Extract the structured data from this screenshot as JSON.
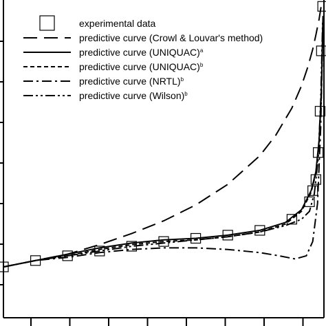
{
  "chart_data": {
    "type": "line",
    "title": "",
    "xlabel": "",
    "ylabel": "",
    "xlim": [
      0,
      1
    ],
    "ylim": [
      0,
      1
    ],
    "legend_position": "top-left",
    "grid": false,
    "series": [
      {
        "name": "experimental data",
        "marker": "open-square",
        "x": [
          0.0,
          0.1,
          0.2,
          0.3,
          0.4,
          0.5,
          0.6,
          0.7,
          0.8,
          0.9,
          0.955,
          0.965,
          0.975,
          0.982,
          0.988,
          0.992,
          0.996
        ],
        "y": [
          0.16,
          0.18,
          0.195,
          0.21,
          0.225,
          0.24,
          0.25,
          0.26,
          0.275,
          0.31,
          0.365,
          0.4,
          0.435,
          0.52,
          0.65,
          0.84,
          0.98
        ]
      },
      {
        "name": "predictive curve (Crowl & Louvar's method)",
        "dash": "long",
        "x": [
          0.0,
          0.1,
          0.2,
          0.3,
          0.4,
          0.5,
          0.6,
          0.7,
          0.8,
          0.85,
          0.9,
          0.93,
          0.95,
          0.965,
          0.975,
          0.985,
          0.992
        ],
        "y": [
          0.16,
          0.18,
          0.2,
          0.23,
          0.265,
          0.305,
          0.355,
          0.42,
          0.51,
          0.575,
          0.66,
          0.73,
          0.79,
          0.845,
          0.89,
          0.94,
          0.985
        ]
      },
      {
        "name": "predictive curve (UNIQUAC)",
        "sup": "a",
        "dash": "solid",
        "x": [
          0.0,
          0.1,
          0.2,
          0.3,
          0.4,
          0.5,
          0.6,
          0.7,
          0.8,
          0.88,
          0.93,
          0.96,
          0.975,
          0.985,
          0.992,
          0.997
        ],
        "y": [
          0.16,
          0.18,
          0.2,
          0.22,
          0.235,
          0.245,
          0.25,
          0.26,
          0.275,
          0.3,
          0.34,
          0.4,
          0.46,
          0.56,
          0.72,
          0.95
        ]
      },
      {
        "name": "predictive curve (UNIQUAC)",
        "sup": "b",
        "dash": "short",
        "x": [
          0.0,
          0.1,
          0.2,
          0.3,
          0.4,
          0.5,
          0.6,
          0.7,
          0.8,
          0.88,
          0.93,
          0.96,
          0.975,
          0.985,
          0.992,
          0.997
        ],
        "y": [
          0.16,
          0.18,
          0.195,
          0.215,
          0.23,
          0.24,
          0.245,
          0.255,
          0.27,
          0.295,
          0.335,
          0.395,
          0.455,
          0.55,
          0.7,
          0.93
        ]
      },
      {
        "name": "predictive curve (NRTL)",
        "sup": "b",
        "dash": "dash-dot",
        "x": [
          0.0,
          0.1,
          0.2,
          0.3,
          0.4,
          0.5,
          0.6,
          0.7,
          0.8,
          0.86,
          0.91,
          0.945,
          0.965,
          0.98,
          0.99,
          0.997
        ],
        "y": [
          0.16,
          0.18,
          0.19,
          0.205,
          0.215,
          0.22,
          0.22,
          0.215,
          0.205,
          0.195,
          0.185,
          0.195,
          0.24,
          0.36,
          0.6,
          0.92
        ]
      },
      {
        "name": "predictive curve (Wilson)",
        "sup": "b",
        "dash": "dash-dot-dot",
        "x": [
          0.0,
          0.1,
          0.2,
          0.3,
          0.4,
          0.5,
          0.6,
          0.7,
          0.8,
          0.88,
          0.93,
          0.955,
          0.97,
          0.982,
          0.99,
          0.996
        ],
        "y": [
          0.16,
          0.18,
          0.195,
          0.21,
          0.225,
          0.235,
          0.245,
          0.255,
          0.27,
          0.29,
          0.31,
          0.335,
          0.39,
          0.5,
          0.68,
          0.93
        ]
      }
    ]
  }
}
